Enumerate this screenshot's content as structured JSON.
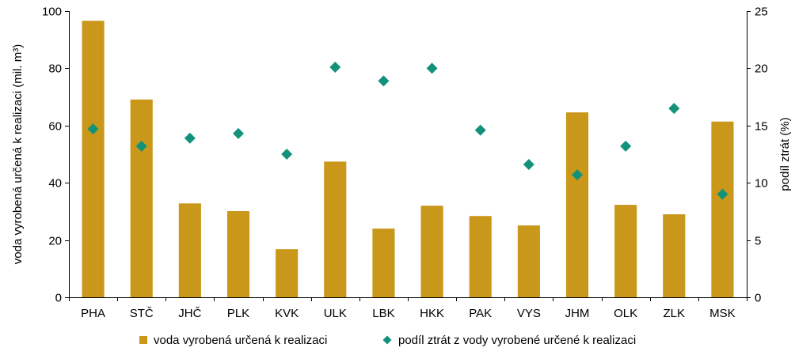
{
  "chart_data": {
    "type": "bar",
    "categories": [
      "PHA",
      "STČ",
      "JHČ",
      "PLK",
      "KVK",
      "ULK",
      "LBK",
      "HKK",
      "PAK",
      "VYS",
      "JHM",
      "OLK",
      "ZLK",
      "MSK"
    ],
    "series": [
      {
        "name": "voda vyrobená určená k realizaci",
        "type": "bar",
        "axis": "left",
        "color": "#C9971A",
        "values": [
          96.6,
          69.1,
          32.8,
          30.1,
          16.8,
          47.4,
          24.0,
          32.0,
          28.4,
          25.1,
          64.6,
          32.3,
          29.0,
          61.4
        ]
      },
      {
        "name": "podíl ztrát z vody vyrobené určené k realizaci",
        "type": "scatter",
        "axis": "right",
        "color": "#13927A",
        "marker": "diamond",
        "values": [
          14.7,
          13.2,
          13.9,
          14.3,
          12.5,
          20.1,
          18.9,
          20.0,
          14.6,
          11.6,
          10.7,
          13.2,
          16.5,
          9.0
        ]
      }
    ],
    "ylabel": "voda vyrobená určená k realizaci (mil. m³)",
    "y2label": "podíl ztrát (%)",
    "ylim": [
      0,
      100
    ],
    "y2lim": [
      0,
      25
    ],
    "yticks": [
      "0",
      "20",
      "40",
      "60",
      "80",
      "100"
    ],
    "y2ticks": [
      "0",
      "5",
      "10",
      "15",
      "20",
      "25"
    ],
    "grid": false,
    "legend_position": "bottom"
  }
}
